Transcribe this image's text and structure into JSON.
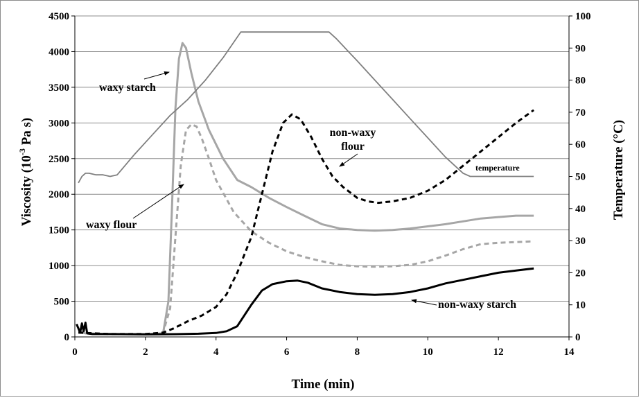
{
  "chart_data": {
    "type": "line",
    "xlabel": "Time  (min)",
    "ylabel": "Viscosity  (10",
    "ylabel_sup": "-3",
    "ylabel_tail": " Pa s)",
    "y2label": "Temperature  (°C)",
    "xlim": [
      0,
      14
    ],
    "ylim": [
      0,
      4500
    ],
    "y2lim": [
      0,
      100
    ],
    "x_ticks": [
      "0",
      "2",
      "4",
      "6",
      "8",
      "10",
      "12",
      "14"
    ],
    "y_ticks": [
      "0",
      "500",
      "1000",
      "1500",
      "2000",
      "2500",
      "3000",
      "3500",
      "4000",
      "4500"
    ],
    "y2_ticks": [
      "0",
      "10",
      "20",
      "30",
      "40",
      "50",
      "60",
      "70",
      "80",
      "90",
      "100"
    ],
    "grid": "horizontal",
    "legend": "none",
    "series": [
      {
        "name": "waxy starch",
        "axis": "left",
        "color": "#a6a6a6",
        "dash": "solid",
        "width": 3,
        "x": [
          0.1,
          0.3,
          1.0,
          2.0,
          2.5,
          2.65,
          2.75,
          2.85,
          2.95,
          3.05,
          3.15,
          3.3,
          3.5,
          3.8,
          4.2,
          4.6,
          5.0,
          5.5,
          6.0,
          6.5,
          7.0,
          7.5,
          8.0,
          8.5,
          9.0,
          9.5,
          10.0,
          10.5,
          11.0,
          11.5,
          12.0,
          12.5,
          13.0
        ],
        "y": [
          80,
          50,
          40,
          40,
          50,
          500,
          1800,
          3200,
          3900,
          4120,
          4050,
          3700,
          3300,
          2900,
          2500,
          2200,
          2100,
          1950,
          1820,
          1700,
          1580,
          1520,
          1500,
          1490,
          1500,
          1520,
          1550,
          1580,
          1620,
          1660,
          1680,
          1700,
          1700
        ]
      },
      {
        "name": "waxy flour",
        "axis": "left",
        "color": "#a6a6a6",
        "dash": "dashed",
        "width": 3,
        "x": [
          0.1,
          1.0,
          2.0,
          2.5,
          2.7,
          2.85,
          3.0,
          3.15,
          3.3,
          3.45,
          3.6,
          3.8,
          4.0,
          4.5,
          5.0,
          5.5,
          6.0,
          6.5,
          7.0,
          7.5,
          8.0,
          8.5,
          9.0,
          9.5,
          10.0,
          10.5,
          11.0,
          11.5,
          12.0,
          12.5,
          13.0
        ],
        "y": [
          60,
          40,
          40,
          60,
          400,
          1400,
          2400,
          2900,
          2980,
          2950,
          2780,
          2500,
          2200,
          1750,
          1480,
          1320,
          1200,
          1120,
          1060,
          1010,
          990,
          985,
          990,
          1010,
          1060,
          1140,
          1230,
          1300,
          1320,
          1330,
          1340
        ]
      },
      {
        "name": "non-waxy flour",
        "axis": "left",
        "color": "#000000",
        "dash": "dashed",
        "width": 3,
        "x": [
          0.1,
          1.0,
          2.0,
          2.5,
          2.8,
          3.2,
          3.6,
          4.0,
          4.3,
          4.6,
          5.0,
          5.3,
          5.6,
          5.9,
          6.15,
          6.4,
          6.7,
          7.0,
          7.3,
          7.6,
          8.0,
          8.3,
          8.6,
          9.0,
          9.5,
          10.0,
          10.5,
          11.0,
          11.5,
          12.0,
          12.5,
          13.0
        ],
        "y": [
          60,
          40,
          40,
          60,
          120,
          220,
          300,
          420,
          600,
          900,
          1400,
          2000,
          2600,
          3000,
          3120,
          3050,
          2800,
          2500,
          2250,
          2100,
          1950,
          1900,
          1880,
          1900,
          1950,
          2050,
          2200,
          2400,
          2600,
          2800,
          3000,
          3180
        ]
      },
      {
        "name": "non-waxy starch",
        "axis": "left",
        "color": "#000000",
        "dash": "solid",
        "width": 3,
        "x": [
          0.05,
          0.1,
          0.15,
          0.2,
          0.25,
          0.3,
          0.35,
          0.5,
          1.0,
          2.0,
          3.0,
          3.5,
          4.0,
          4.3,
          4.6,
          5.0,
          5.3,
          5.6,
          6.0,
          6.3,
          6.6,
          7.0,
          7.5,
          8.0,
          8.5,
          9.0,
          9.5,
          10.0,
          10.5,
          11.0,
          11.5,
          12.0,
          12.5,
          13.0
        ],
        "y": [
          180,
          120,
          60,
          190,
          80,
          200,
          50,
          40,
          40,
          35,
          40,
          45,
          55,
          80,
          150,
          450,
          650,
          740,
          780,
          790,
          760,
          680,
          630,
          600,
          590,
          600,
          630,
          680,
          750,
          800,
          850,
          900,
          930,
          960
        ]
      },
      {
        "name": "temperature",
        "axis": "right",
        "color": "#7f7f7f",
        "dash": "solid",
        "width": 1.8,
        "x": [
          0.1,
          0.2,
          0.3,
          0.4,
          0.6,
          0.8,
          1.0,
          1.2,
          1.7,
          2.2,
          2.7,
          3.2,
          3.7,
          4.2,
          4.7,
          4.8,
          5.2,
          6.0,
          6.5,
          7.2,
          7.4,
          8.0,
          8.5,
          9.0,
          9.5,
          10.0,
          10.5,
          11.0,
          11.2,
          12.0,
          13.0
        ],
        "y": [
          48,
          50,
          51,
          51,
          50.5,
          50.5,
          50,
          50.5,
          57,
          63,
          69,
          74,
          80,
          87,
          95,
          95,
          95,
          95,
          95,
          95,
          93,
          86,
          80,
          74,
          68,
          62,
          56,
          51,
          50,
          50,
          50
        ]
      }
    ],
    "annotations": {
      "waxy_starch": "waxy starch",
      "waxy_flour": "waxy flour",
      "non_waxy_flour_1": "non-waxy",
      "non_waxy_flour_2": "flour",
      "non_waxy_starch": "non-waxy starch",
      "temperature": "temperature"
    }
  }
}
